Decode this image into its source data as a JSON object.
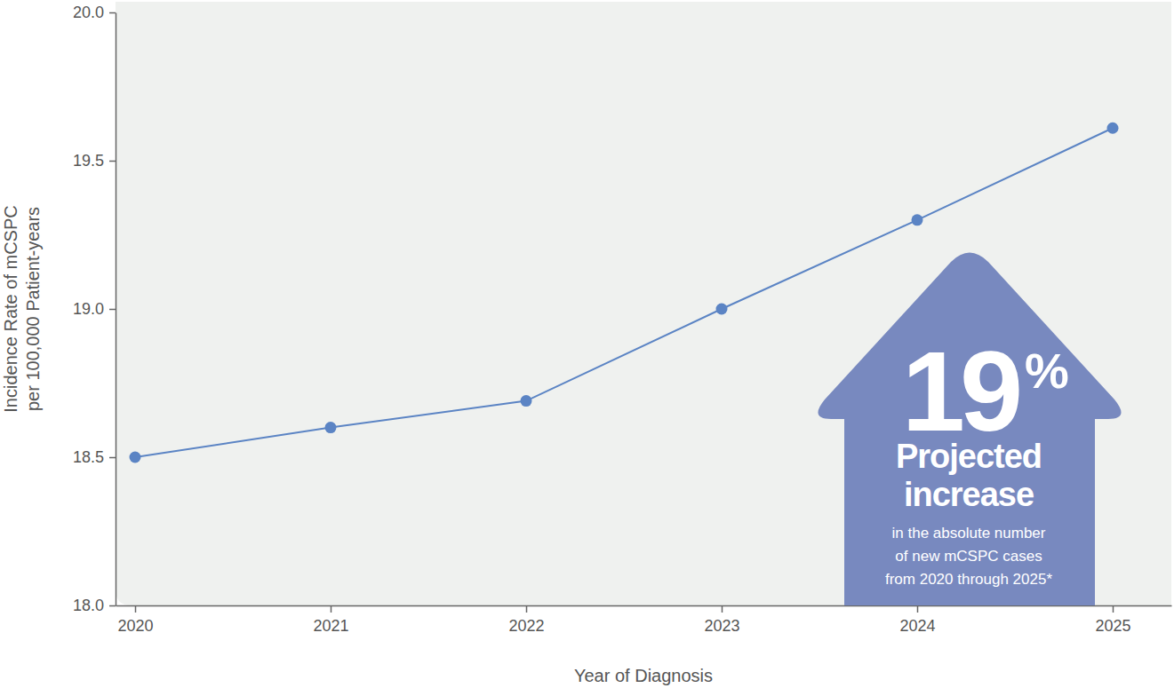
{
  "chart_data": {
    "type": "line",
    "xlabel": "Year of Diagnosis",
    "ylabel": [
      "Incidence Rate of mCSPC",
      "per 100,000 Patient-years"
    ],
    "x": [
      2020,
      2021,
      2022,
      2023,
      2024,
      2025
    ],
    "values": [
      18.5,
      18.6,
      18.69,
      19.0,
      19.3,
      19.61
    ],
    "color": "#5b84c4",
    "marker": "circle",
    "xlim": [
      2019.9,
      2025.3
    ],
    "xticks": [
      2020,
      2021,
      2022,
      2023,
      2024,
      2025
    ],
    "ylim": [
      18.0,
      20.0
    ],
    "yticks": [
      {
        "value": 18.0,
        "label": "18.0"
      },
      {
        "value": 18.5,
        "label": "18.5"
      },
      {
        "value": 19.0,
        "label": "19.0"
      },
      {
        "value": 19.5,
        "label": "19.5"
      },
      {
        "value": 20.0,
        "label": "20.0"
      }
    ],
    "grid": false,
    "annotation": {
      "big_text": "19",
      "big_suffix": "%",
      "heading": [
        "Projected",
        "increase"
      ],
      "note": [
        "in the absolute number",
        "of new mCSPC cases",
        "from 2020 through 2025*"
      ]
    }
  }
}
